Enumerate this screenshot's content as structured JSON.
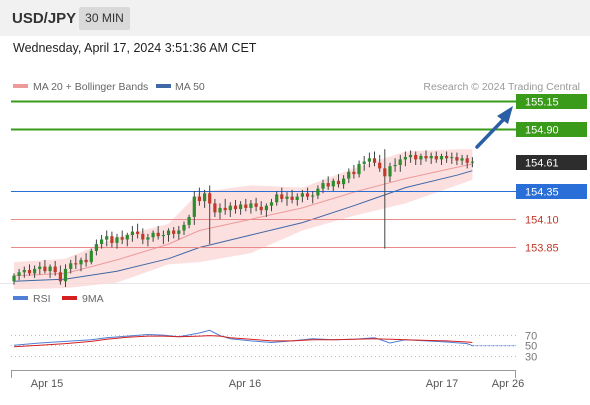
{
  "header": {
    "symbol": "USD/JPY",
    "interval": "30 MIN"
  },
  "timestamp": "Wednesday, April 17, 2024 3:51:36 AM CET",
  "legend": {
    "bb_label": "MA 20 + Bollinger Bands",
    "ma50_label": "MA 50",
    "credit": "Research © 2024 Trading Central",
    "rsi_label": "RSI",
    "ma9_label": "9MA"
  },
  "colors": {
    "up": "#2e8b2e",
    "down": "#c0392b",
    "resistance": "#3a9a1a",
    "support": "#e88a8a",
    "pivot": "#2a6ed8",
    "last": "#2d2d2d",
    "bb_fill": "#fbd4d4",
    "ma20": "#ee9a9a",
    "ma50": "#3f68a6",
    "rsi": "#4f7fd6",
    "ma9": "#d42020",
    "arrow": "#2b5fa5"
  },
  "chart_data": [
    {
      "type": "candlestick",
      "series": [
        "MA 20 + Bollinger Bands",
        "MA 50"
      ],
      "x_ticks": [
        "Apr 15",
        "Apr 16",
        "Apr 17",
        "Apr 26"
      ],
      "ylim": [
        153.42,
        155.28
      ],
      "last_price": 154.61,
      "levels": [
        {
          "value": 155.15,
          "label": "155.15",
          "kind": "resistance"
        },
        {
          "value": 154.9,
          "label": "154.90",
          "kind": "resistance"
        },
        {
          "value": 154.61,
          "label": "154.61",
          "kind": "last"
        },
        {
          "value": 154.35,
          "label": "154.35",
          "kind": "pivot"
        },
        {
          "value": 154.1,
          "label": "154.10",
          "kind": "support"
        },
        {
          "value": 153.85,
          "label": "153.85",
          "kind": "support"
        }
      ],
      "candles": [
        [
          153.55,
          153.62,
          153.52,
          153.6
        ],
        [
          153.6,
          153.66,
          153.56,
          153.63
        ],
        [
          153.63,
          153.68,
          153.58,
          153.65
        ],
        [
          153.65,
          153.7,
          153.6,
          153.62
        ],
        [
          153.62,
          153.69,
          153.58,
          153.66
        ],
        [
          153.66,
          153.72,
          153.61,
          153.68
        ],
        [
          153.68,
          153.74,
          153.62,
          153.64
        ],
        [
          153.64,
          153.7,
          153.58,
          153.68
        ],
        [
          153.68,
          153.73,
          153.6,
          153.63
        ],
        [
          153.63,
          153.69,
          153.52,
          153.55
        ],
        [
          153.55,
          153.7,
          153.5,
          153.66
        ],
        [
          153.66,
          153.74,
          153.62,
          153.71
        ],
        [
          153.71,
          153.78,
          153.66,
          153.7
        ],
        [
          153.7,
          153.76,
          153.64,
          153.74
        ],
        [
          153.74,
          153.8,
          153.68,
          153.72
        ],
        [
          153.72,
          153.84,
          153.7,
          153.82
        ],
        [
          153.82,
          153.92,
          153.78,
          153.88
        ],
        [
          153.88,
          153.96,
          153.84,
          153.92
        ],
        [
          153.92,
          154.0,
          153.86,
          153.95
        ],
        [
          153.95,
          153.99,
          153.85,
          153.89
        ],
        [
          153.89,
          153.97,
          153.84,
          153.94
        ],
        [
          153.94,
          154.0,
          153.88,
          153.92
        ],
        [
          153.92,
          153.98,
          153.86,
          153.96
        ],
        [
          153.96,
          154.04,
          153.9,
          153.99
        ],
        [
          153.99,
          154.06,
          153.93,
          153.97
        ],
        [
          153.97,
          154.02,
          153.88,
          153.92
        ],
        [
          153.92,
          153.97,
          153.86,
          153.94
        ],
        [
          153.94,
          154.0,
          153.9,
          153.98
        ],
        [
          153.98,
          154.04,
          153.92,
          153.95
        ],
        [
          153.95,
          154.0,
          153.88,
          153.96
        ],
        [
          153.96,
          154.02,
          153.9,
          154.0
        ],
        [
          154.0,
          154.03,
          153.93,
          153.97
        ],
        [
          153.97,
          154.04,
          153.92,
          154.0
        ],
        [
          154.0,
          154.08,
          153.96,
          154.05
        ],
        [
          154.05,
          154.14,
          154.02,
          154.12
        ],
        [
          154.12,
          154.35,
          154.05,
          154.3
        ],
        [
          154.3,
          154.38,
          154.22,
          154.26
        ],
        [
          154.26,
          154.36,
          154.2,
          154.33
        ],
        [
          154.33,
          154.4,
          153.88,
          154.24
        ],
        [
          154.24,
          154.28,
          154.12,
          154.16
        ],
        [
          154.16,
          154.24,
          154.1,
          154.2
        ],
        [
          154.2,
          154.28,
          154.14,
          154.18
        ],
        [
          154.18,
          154.25,
          154.12,
          154.22
        ],
        [
          154.22,
          154.27,
          154.15,
          154.19
        ],
        [
          154.19,
          154.26,
          154.14,
          154.23
        ],
        [
          154.23,
          154.28,
          154.17,
          154.2
        ],
        [
          154.2,
          154.27,
          154.15,
          154.24
        ],
        [
          154.24,
          154.29,
          154.17,
          154.21
        ],
        [
          154.21,
          154.26,
          154.14,
          154.18
        ],
        [
          154.18,
          154.24,
          154.12,
          154.22
        ],
        [
          154.22,
          154.28,
          154.17,
          154.25
        ],
        [
          154.25,
          154.35,
          154.22,
          154.32
        ],
        [
          154.32,
          154.38,
          154.25,
          154.28
        ],
        [
          154.28,
          154.34,
          154.22,
          154.3
        ],
        [
          154.3,
          154.36,
          154.24,
          154.27
        ],
        [
          154.27,
          154.33,
          154.22,
          154.3
        ],
        [
          154.3,
          154.36,
          154.25,
          154.33
        ],
        [
          154.33,
          154.38,
          154.27,
          154.3
        ],
        [
          154.3,
          154.35,
          154.24,
          154.31
        ],
        [
          154.31,
          154.4,
          154.28,
          154.37
        ],
        [
          154.37,
          154.45,
          154.33,
          154.42
        ],
        [
          154.42,
          154.48,
          154.36,
          154.39
        ],
        [
          154.39,
          154.46,
          154.35,
          154.44
        ],
        [
          154.44,
          154.5,
          154.38,
          154.41
        ],
        [
          154.41,
          154.49,
          154.37,
          154.46
        ],
        [
          154.46,
          154.55,
          154.42,
          154.52
        ],
        [
          154.52,
          154.58,
          154.46,
          154.5
        ],
        [
          154.5,
          154.62,
          154.47,
          154.59
        ],
        [
          154.59,
          154.66,
          154.53,
          154.61
        ],
        [
          154.61,
          154.69,
          154.56,
          154.64
        ],
        [
          154.64,
          154.7,
          154.57,
          154.6
        ],
        [
          154.6,
          154.67,
          154.52,
          154.55
        ],
        [
          154.55,
          154.72,
          153.84,
          154.48
        ],
        [
          154.48,
          154.6,
          154.43,
          154.57
        ],
        [
          154.57,
          154.64,
          154.52,
          154.58
        ],
        [
          154.58,
          154.67,
          154.52,
          154.63
        ],
        [
          154.63,
          154.7,
          154.57,
          154.65
        ],
        [
          154.65,
          154.71,
          154.6,
          154.67
        ],
        [
          154.67,
          154.7,
          154.58,
          154.63
        ],
        [
          154.63,
          154.68,
          154.58,
          154.66
        ],
        [
          154.66,
          154.71,
          154.61,
          154.64
        ],
        [
          154.64,
          154.69,
          154.59,
          154.66
        ],
        [
          154.66,
          154.7,
          154.6,
          154.63
        ],
        [
          154.63,
          154.68,
          154.58,
          154.66
        ],
        [
          154.66,
          154.7,
          154.6,
          154.64
        ],
        [
          154.64,
          154.69,
          154.59,
          154.65
        ],
        [
          154.65,
          154.69,
          154.58,
          154.62
        ],
        [
          154.62,
          154.67,
          154.58,
          154.64
        ],
        [
          154.64,
          154.67,
          154.55,
          154.6
        ],
        [
          154.6,
          154.65,
          154.56,
          154.61
        ]
      ],
      "ma20": [
        [
          0,
          153.6
        ],
        [
          10,
          153.62
        ],
        [
          20,
          153.74
        ],
        [
          30,
          153.88
        ],
        [
          36,
          154.0
        ],
        [
          46,
          154.1
        ],
        [
          56,
          154.2
        ],
        [
          66,
          154.34
        ],
        [
          76,
          154.46
        ],
        [
          86,
          154.56
        ],
        [
          89,
          154.59
        ]
      ],
      "bb_upper": [
        [
          0,
          153.72
        ],
        [
          10,
          153.75
        ],
        [
          20,
          153.94
        ],
        [
          30,
          154.06
        ],
        [
          36,
          154.34
        ],
        [
          46,
          154.4
        ],
        [
          56,
          154.38
        ],
        [
          66,
          154.55
        ],
        [
          76,
          154.7
        ],
        [
          86,
          154.72
        ],
        [
          89,
          154.72
        ]
      ],
      "bb_lower": [
        [
          0,
          153.48
        ],
        [
          10,
          153.49
        ],
        [
          20,
          153.54
        ],
        [
          30,
          153.7
        ],
        [
          36,
          153.72
        ],
        [
          46,
          153.8
        ],
        [
          56,
          154.0
        ],
        [
          66,
          154.13
        ],
        [
          76,
          154.24
        ],
        [
          86,
          154.4
        ],
        [
          89,
          154.45
        ]
      ],
      "ma50": [
        [
          0,
          153.55
        ],
        [
          10,
          153.57
        ],
        [
          20,
          153.64
        ],
        [
          30,
          153.75
        ],
        [
          36,
          153.85
        ],
        [
          46,
          153.96
        ],
        [
          56,
          154.07
        ],
        [
          66,
          154.22
        ],
        [
          76,
          154.38
        ],
        [
          86,
          154.49
        ],
        [
          89,
          154.53
        ]
      ]
    },
    {
      "type": "line",
      "series": [
        "RSI",
        "9MA"
      ],
      "y_ticks": [
        70,
        50,
        30
      ],
      "ylim": [
        22,
        88
      ],
      "rsi": [
        [
          0,
          50
        ],
        [
          5,
          54
        ],
        [
          10,
          57
        ],
        [
          15,
          60
        ],
        [
          18,
          64
        ],
        [
          22,
          67
        ],
        [
          26,
          70
        ],
        [
          29,
          69
        ],
        [
          32,
          66
        ],
        [
          36,
          73
        ],
        [
          38,
          78
        ],
        [
          40,
          68
        ],
        [
          42,
          62
        ],
        [
          46,
          58
        ],
        [
          50,
          55
        ],
        [
          54,
          58
        ],
        [
          58,
          62
        ],
        [
          62,
          60
        ],
        [
          66,
          61
        ],
        [
          70,
          64
        ],
        [
          73,
          54
        ],
        [
          76,
          60
        ],
        [
          80,
          58
        ],
        [
          84,
          56
        ],
        [
          88,
          53
        ],
        [
          89,
          49
        ]
      ],
      "ma9": [
        [
          0,
          47
        ],
        [
          5,
          50
        ],
        [
          10,
          53
        ],
        [
          15,
          57
        ],
        [
          18,
          61
        ],
        [
          22,
          65
        ],
        [
          26,
          67
        ],
        [
          29,
          67
        ],
        [
          32,
          66
        ],
        [
          36,
          67
        ],
        [
          38,
          68
        ],
        [
          40,
          67
        ],
        [
          42,
          64
        ],
        [
          46,
          61
        ],
        [
          50,
          58
        ],
        [
          54,
          58
        ],
        [
          58,
          60
        ],
        [
          62,
          60
        ],
        [
          66,
          61
        ],
        [
          70,
          62
        ],
        [
          73,
          61
        ],
        [
          76,
          60
        ],
        [
          80,
          59
        ],
        [
          84,
          58
        ],
        [
          88,
          56
        ],
        [
          89,
          55
        ]
      ]
    }
  ]
}
